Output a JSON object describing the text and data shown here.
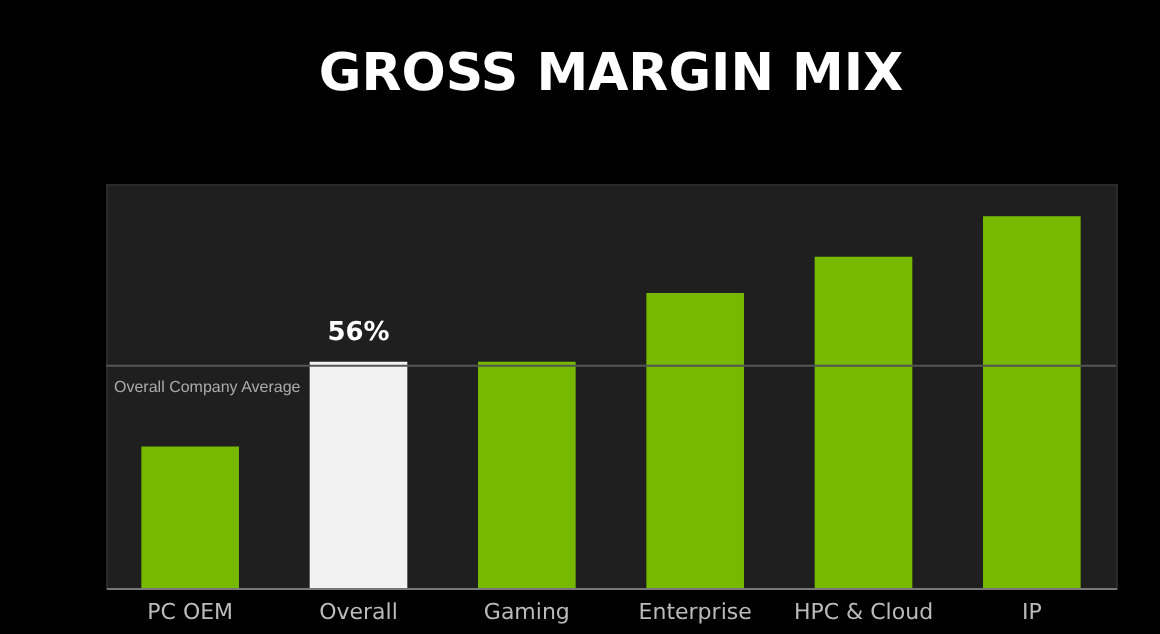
{
  "chart_data": {
    "type": "bar",
    "title": "GROSS MARGIN MIX",
    "categories": [
      "PC OEM",
      "Overall",
      "Gaming",
      "Enterprise",
      "HPC & Cloud",
      "IP"
    ],
    "values": [
      35,
      56,
      56,
      73,
      82,
      92
    ],
    "colors": [
      "#76b900",
      "#f2f2f2",
      "#76b900",
      "#76b900",
      "#76b900",
      "#76b900"
    ],
    "ylim": [
      0,
      100
    ],
    "tick_labels": "x",
    "value_labels": [
      null,
      "56%",
      null,
      null,
      null,
      null
    ],
    "ref_lines": [
      {
        "axis": "y",
        "value": 55,
        "label": "Overall Company Average",
        "color": "#555555"
      }
    ],
    "grid": false
  }
}
